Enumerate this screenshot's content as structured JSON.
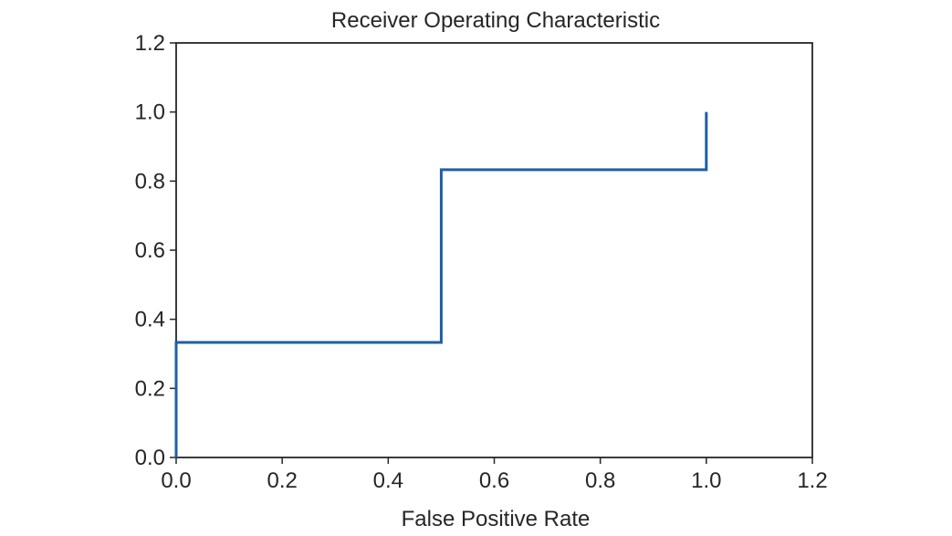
{
  "chart_data": {
    "type": "line",
    "title": "Receiver Operating Characteristic",
    "xlabel": "False Positive Rate",
    "ylabel": "",
    "xlim": [
      0.0,
      1.2
    ],
    "ylim": [
      0.0,
      1.2
    ],
    "xticks": [
      "0.0",
      "0.2",
      "0.4",
      "0.6",
      "0.8",
      "1.0",
      "1.2"
    ],
    "yticks": [
      "0.0",
      "0.2",
      "0.4",
      "0.6",
      "0.8",
      "1.0",
      "1.2"
    ],
    "grid": false,
    "series": [
      {
        "color": "#1f5fa6",
        "x": [
          0.0,
          0.0,
          0.5,
          0.5,
          1.0,
          1.0
        ],
        "y": [
          0.0,
          0.333,
          0.333,
          0.833,
          0.833,
          1.0
        ]
      }
    ]
  }
}
